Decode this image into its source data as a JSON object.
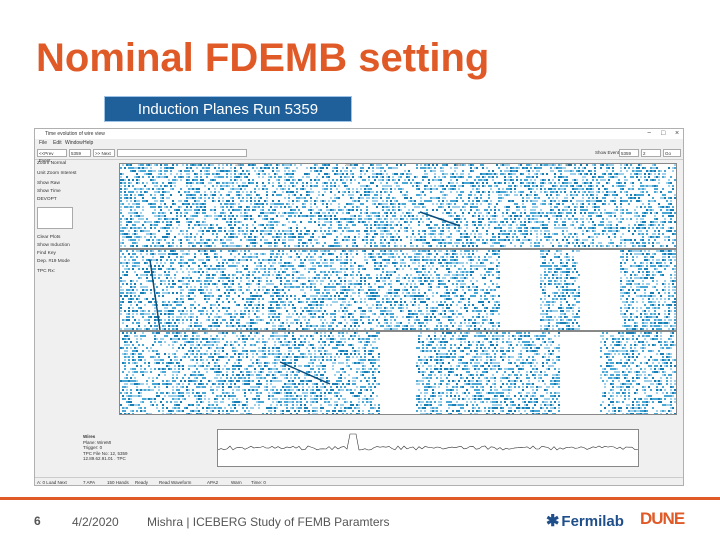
{
  "slide": {
    "title": "Nominal FDEMB setting",
    "run_label": "Induction Planes Run 5359",
    "footer": {
      "page_number": "6",
      "date": "4/2/2020",
      "author_line": "Mishra | ICEBERG Study of FEMB Paramters",
      "fermilab_logo": "Fermilab",
      "dune_logo": "DUNE"
    }
  },
  "app": {
    "window_title": "Time evolution of wire view",
    "window_controls": [
      "−",
      "□",
      "×"
    ],
    "menu": [
      "File",
      "Edit",
      "Window",
      "Help"
    ],
    "toolbar": {
      "field1": "<<Prev Event",
      "field2": "5359",
      "field3": ">> Next",
      "right_label": "Show Event",
      "right_field1": "5359",
      "right_field2": "2",
      "right_field3": "Go"
    },
    "left_panel": {
      "items": [
        "Zoom Normal",
        "Unit Zoom Interest",
        "Show Raw",
        "Show Time",
        "DEVOPT",
        "Clear Plots",
        "Show Induction",
        "Find Key",
        "Dep. #19 Mode",
        "TPC Rx:"
      ],
      "legend": [
        "Wires",
        "Plane: WireMI",
        "Trigger: 0",
        "TPC File No: 12, 5359",
        "12.89.62.91.01 . TPC"
      ]
    },
    "status_bar": [
      "A: 0   Load Next",
      "7   APA",
      "150   Hands",
      "Ready",
      "Read Waveform",
      "APA2",
      "Warn",
      "Time: 0"
    ],
    "plot_axis_ticks": [
      "100",
      "200",
      "300",
      "400",
      "500"
    ]
  }
}
